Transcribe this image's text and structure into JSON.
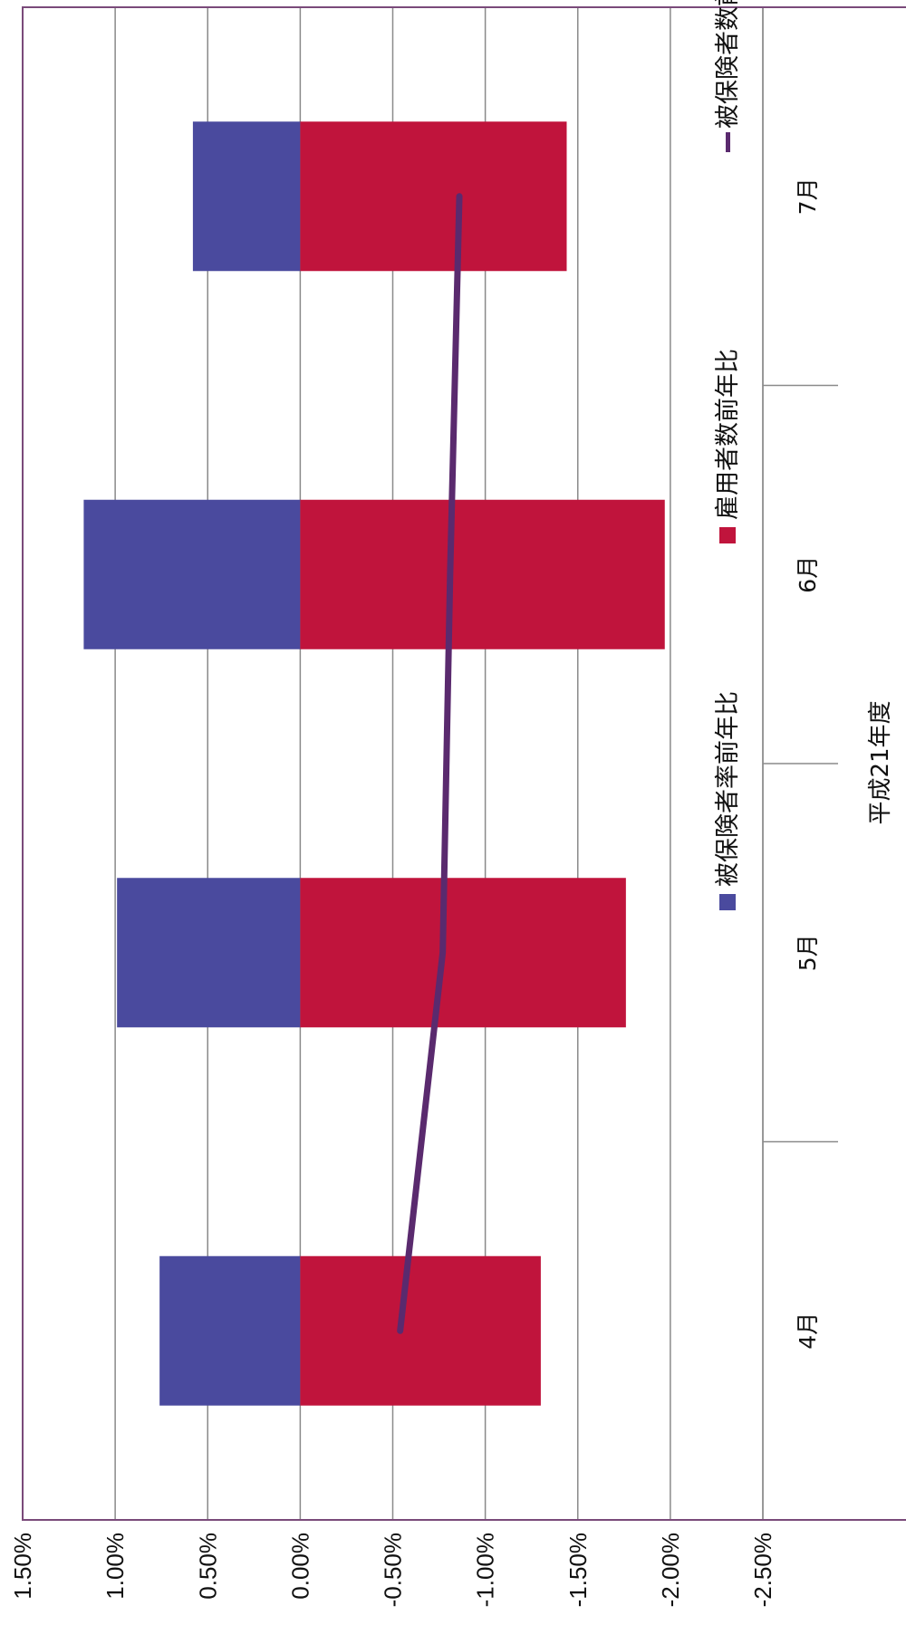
{
  "chart_data": {
    "type": "bar",
    "orientation": "rotated-90-cw",
    "title": "",
    "xlabel": "平成21年度",
    "ylabel": "",
    "categories": [
      "4月",
      "5月",
      "6月",
      "7月"
    ],
    "ylim": [
      -2.5,
      1.5
    ],
    "yticks": [
      "1.50%",
      "1.00%",
      "0.50%",
      "0.00%",
      "-0.50%",
      "-1.00%",
      "-1.50%",
      "-2.00%",
      "-2.50%"
    ],
    "grid": true,
    "legend_position": "right",
    "series": [
      {
        "name": "被保険者率前年比",
        "kind": "bar",
        "color": "#4a4a9e",
        "values": [
          0.76,
          0.99,
          1.17,
          0.58
        ]
      },
      {
        "name": "雇用者数前年比",
        "kind": "bar",
        "color": "#c0143c",
        "values": [
          -1.3,
          -1.76,
          -1.97,
          -1.44
        ]
      },
      {
        "name": "被保険者数前年比",
        "kind": "line",
        "color": "#5a2a6e",
        "values": [
          -0.54,
          -0.77,
          -0.81,
          -0.86
        ]
      }
    ]
  }
}
